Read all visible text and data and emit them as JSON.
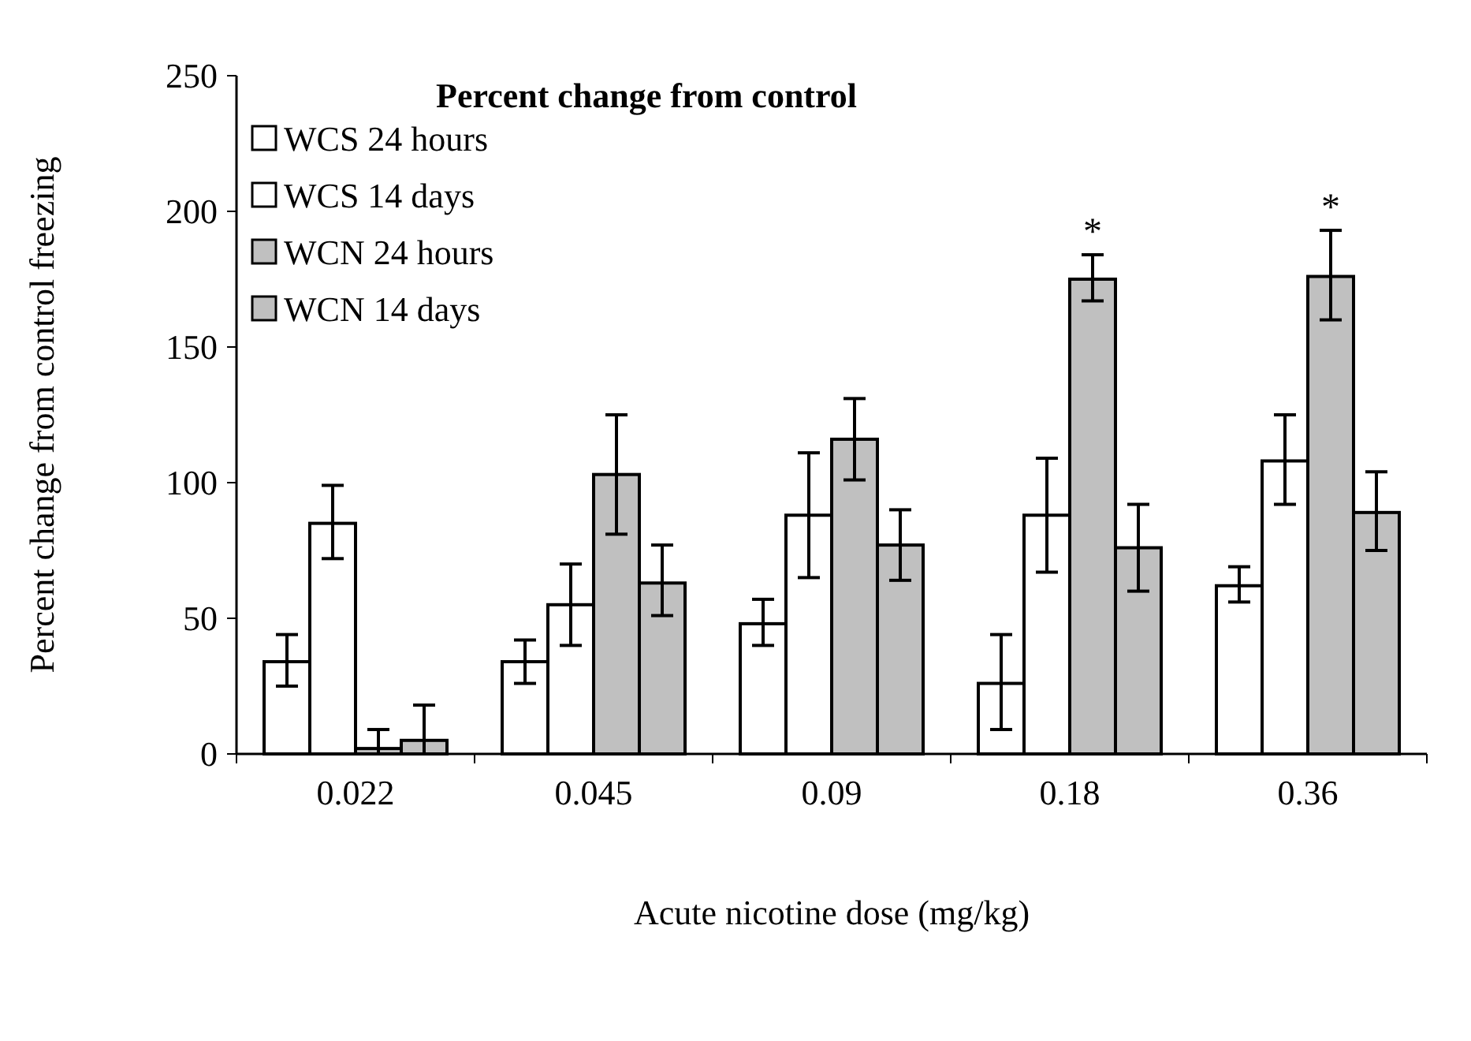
{
  "chart_data": {
    "type": "bar",
    "title": "Percent change from control",
    "xlabel": "Acute nicotine dose (mg/kg)",
    "ylabel": "Percent change from control freezing",
    "categories": [
      "0.022",
      "0.045",
      "0.09",
      "0.18",
      "0.36"
    ],
    "series": [
      {
        "name": "WCS 24 hours",
        "color": "#ffffff",
        "values": [
          34,
          34,
          48,
          26,
          62
        ],
        "errors": [
          [
            25,
            44
          ],
          [
            26,
            42
          ],
          [
            40,
            57
          ],
          [
            9,
            44
          ],
          [
            56,
            69
          ]
        ]
      },
      {
        "name": "WCS 14 days",
        "color": "#ffffff",
        "values": [
          85,
          55,
          88,
          88,
          108
        ],
        "errors": [
          [
            72,
            99
          ],
          [
            40,
            70
          ],
          [
            65,
            111
          ],
          [
            67,
            109
          ],
          [
            92,
            125
          ]
        ]
      },
      {
        "name": "WCN 24 hours",
        "color": "#c0c0c0",
        "values": [
          2,
          103,
          116,
          175,
          176
        ],
        "errors": [
          [
            0,
            9
          ],
          [
            81,
            125
          ],
          [
            101,
            131
          ],
          [
            167,
            184
          ],
          [
            160,
            193
          ]
        ]
      },
      {
        "name": "WCN 14 days",
        "color": "#c0c0c0",
        "values": [
          5,
          63,
          77,
          76,
          89
        ],
        "errors": [
          [
            0,
            18
          ],
          [
            51,
            77
          ],
          [
            64,
            90
          ],
          [
            60,
            92
          ],
          [
            75,
            104
          ]
        ]
      }
    ],
    "ylim": [
      0,
      250
    ],
    "yticks": [
      0,
      50,
      100,
      150,
      200,
      250
    ],
    "grid": false,
    "legend": "top left",
    "annotations": [
      "*",
      "*"
    ]
  }
}
